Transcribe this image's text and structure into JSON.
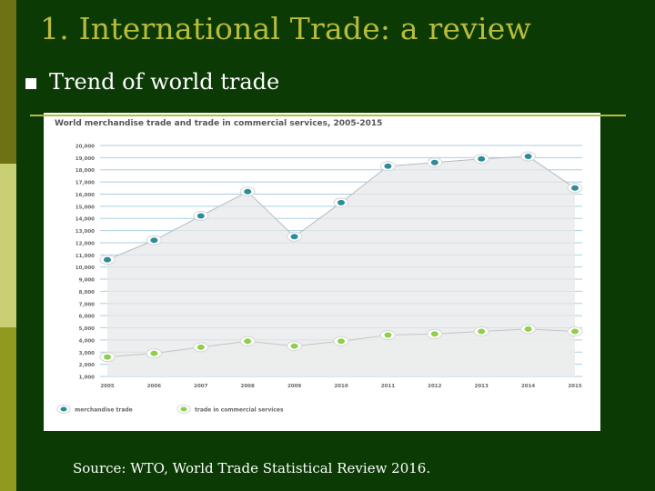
{
  "slide": {
    "title": "1. International Trade: a review",
    "bullet": "Trend of world trade",
    "source": "Source: WTO, World Trade Statistical Review 2016."
  },
  "colors": {
    "background": "#0b3a05",
    "title": "#b9bb3b",
    "merchandise": "#2e8b9a",
    "services": "#8fcf4a",
    "chart_bg": "#ffffff"
  },
  "chart_data": {
    "type": "line",
    "title": "World merchandise trade and trade in commercial services, 2005-2015",
    "ylabel": "",
    "y_tick_labels": [
      "1,000",
      "2,000",
      "3,000",
      "4,000",
      "5,000",
      "6,000",
      "7,000",
      "8,000",
      "9,000",
      "10,000",
      "11,000",
      "12,000",
      "13,000",
      "14,000",
      "15,000",
      "16,000",
      "17,000",
      "18,000",
      "19,000",
      "20,000"
    ],
    "ylim": [
      1000,
      20000
    ],
    "categories": [
      "2005",
      "2006",
      "2007",
      "2008",
      "2009",
      "2010",
      "2011",
      "2012",
      "2013",
      "2014",
      "2015"
    ],
    "series": [
      {
        "name": "merchandise trade",
        "values": [
          10600,
          12200,
          14200,
          16200,
          12500,
          15300,
          18300,
          18600,
          18900,
          19100,
          16500
        ]
      },
      {
        "name": "trade in commercial services",
        "values": [
          2600,
          2900,
          3400,
          3900,
          3500,
          3900,
          4400,
          4500,
          4700,
          4900,
          4700
        ]
      }
    ],
    "legend_position": "bottom-left",
    "grid": true
  }
}
